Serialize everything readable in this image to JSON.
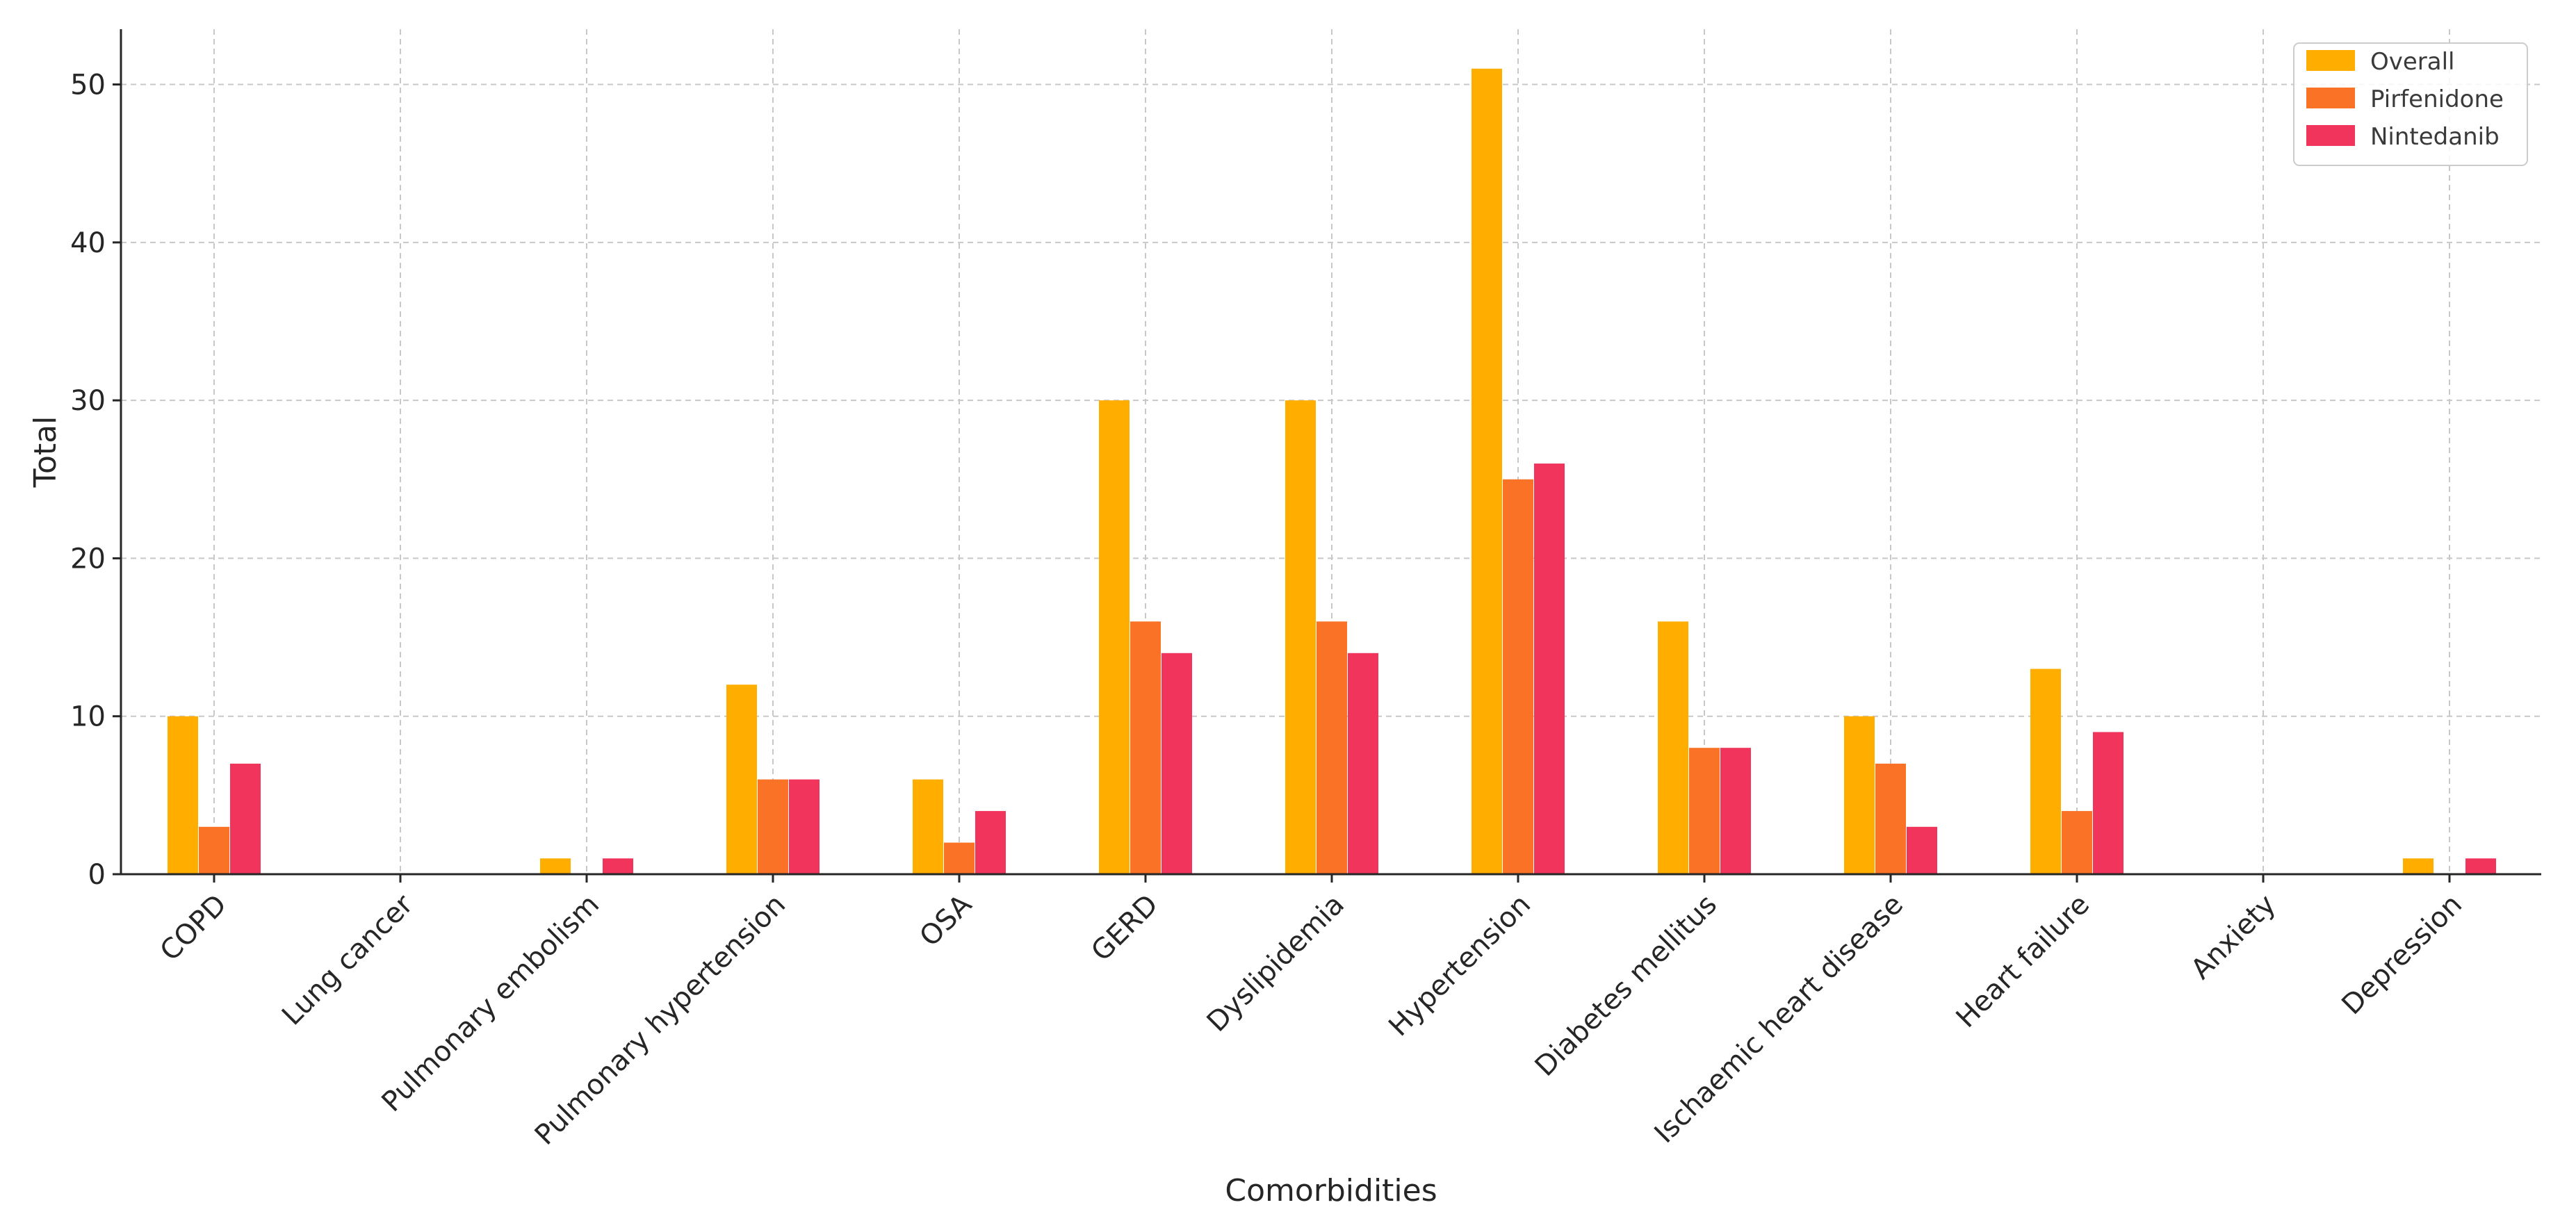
{
  "chart_data": {
    "type": "bar",
    "title": "",
    "xlabel": "Comorbidities",
    "ylabel": "Total",
    "ylim": [
      0,
      53.5
    ],
    "yticks": [
      0,
      10,
      20,
      30,
      40,
      50
    ],
    "grid": true,
    "legend_position": "top-right",
    "categories": [
      "COPD",
      "Lung cancer",
      "Pulmonary embolism",
      "Pulmonary hypertension",
      "OSA",
      "GERD",
      "Dyslipidemia",
      "Hypertension",
      "Diabetes mellitus",
      "Ischaemic heart disease",
      "Heart failure",
      "Anxiety",
      "Depression"
    ],
    "series": [
      {
        "name": "Overall",
        "color": "#FFAE00",
        "values": [
          10,
          0,
          1,
          12,
          6,
          30,
          30,
          51,
          16,
          10,
          13,
          0,
          1
        ]
      },
      {
        "name": "Pirfenidone",
        "color": "#F97226",
        "values": [
          3,
          0,
          0,
          6,
          2,
          16,
          16,
          25,
          8,
          7,
          4,
          0,
          0
        ]
      },
      {
        "name": "Nintedanib",
        "color": "#F0345C",
        "values": [
          7,
          0,
          1,
          6,
          4,
          14,
          14,
          26,
          8,
          3,
          9,
          0,
          1
        ]
      }
    ]
  }
}
